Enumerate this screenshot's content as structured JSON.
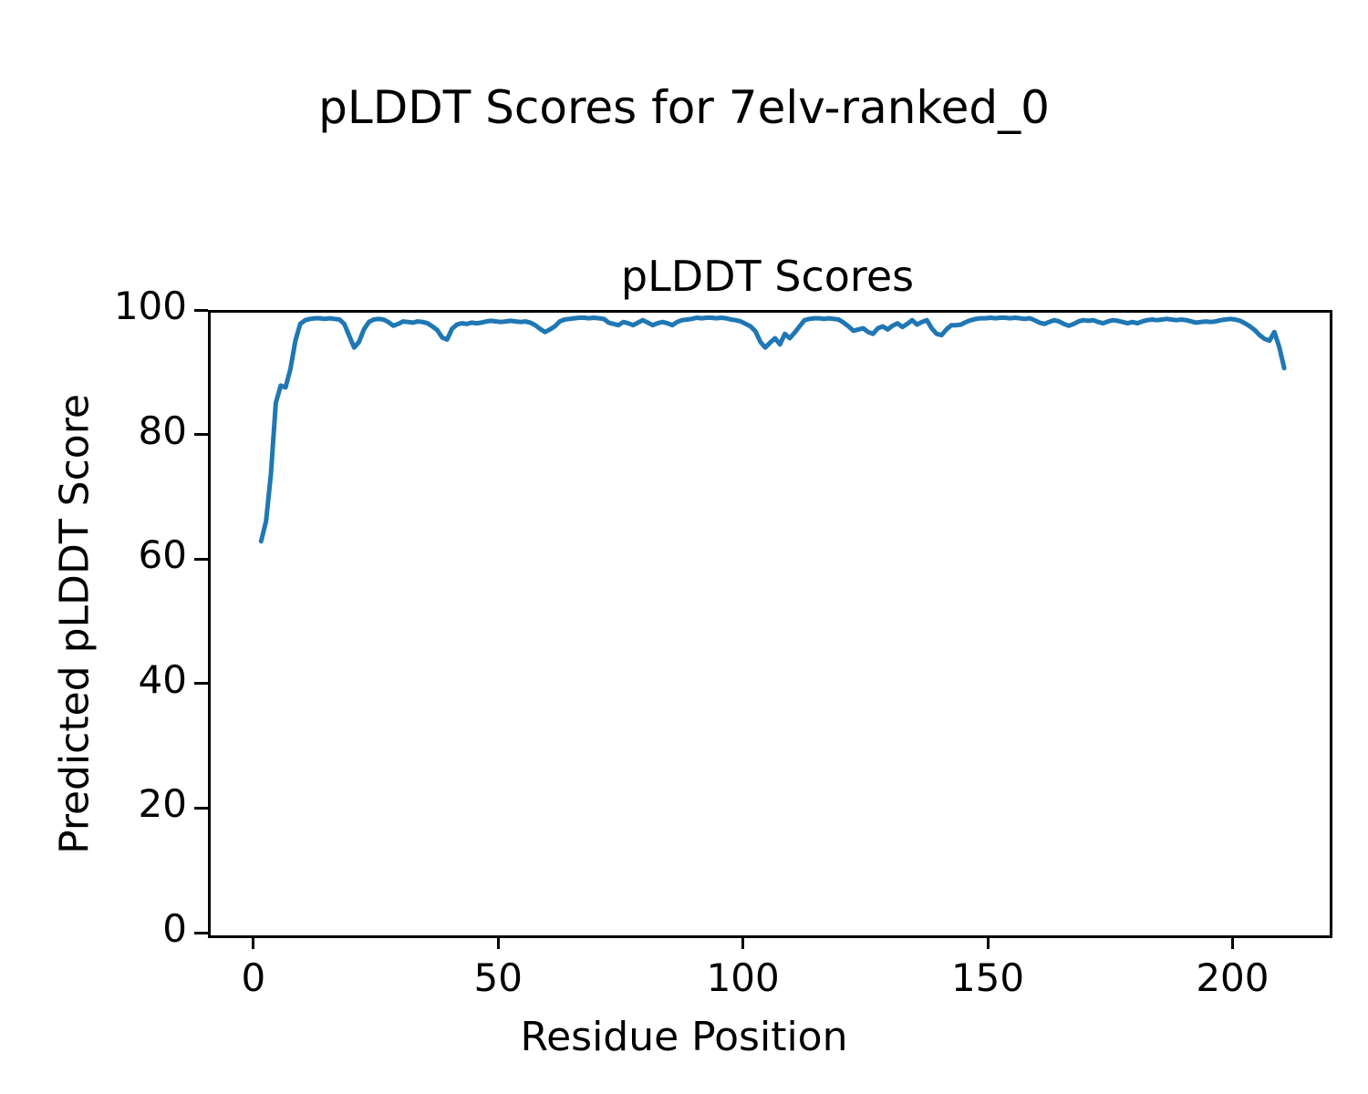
{
  "figure": {
    "title": "pLDDT Scores for 7elv-ranked_0"
  },
  "chart_data": {
    "type": "line",
    "figure_title": "pLDDT Scores for 7elv-ranked_0",
    "title": "pLDDT Scores",
    "xlabel": "Residue Position",
    "ylabel": "Predicted pLDDT Score",
    "x_ticks": [
      0,
      50,
      100,
      150,
      200
    ],
    "y_ticks": [
      0,
      20,
      40,
      60,
      80,
      100
    ],
    "xlim": [
      -9.3,
      219.3
    ],
    "ylim": [
      0,
      100
    ],
    "grid": false,
    "legend": "none",
    "line_color": "#1f77b4",
    "series": [
      {
        "name": "pLDDT",
        "x_start": 1,
        "x_step": 1,
        "values": [
          63.3,
          66.5,
          74.0,
          85.5,
          88.3,
          88.0,
          91.0,
          95.5,
          98.2,
          98.8,
          99.0,
          99.1,
          99.1,
          99.0,
          99.1,
          99.0,
          98.9,
          98.2,
          96.3,
          94.4,
          95.3,
          97.3,
          98.5,
          98.9,
          99.0,
          98.9,
          98.5,
          97.9,
          98.2,
          98.6,
          98.5,
          98.4,
          98.6,
          98.5,
          98.3,
          97.8,
          97.2,
          96.0,
          95.7,
          97.4,
          98.1,
          98.3,
          98.2,
          98.4,
          98.3,
          98.4,
          98.6,
          98.7,
          98.6,
          98.5,
          98.6,
          98.7,
          98.6,
          98.5,
          98.6,
          98.4,
          98.0,
          97.4,
          96.9,
          97.3,
          97.8,
          98.6,
          98.9,
          99.0,
          99.1,
          99.2,
          99.2,
          99.1,
          99.2,
          99.1,
          99.0,
          98.4,
          98.2,
          98.0,
          98.5,
          98.3,
          98.0,
          98.4,
          98.8,
          98.4,
          98.0,
          98.3,
          98.5,
          98.3,
          98.0,
          98.5,
          98.8,
          98.9,
          99.0,
          99.2,
          99.1,
          99.2,
          99.2,
          99.1,
          99.2,
          99.1,
          98.9,
          98.8,
          98.6,
          98.2,
          97.8,
          97.0,
          95.3,
          94.4,
          95.2,
          95.9,
          94.9,
          96.6,
          95.9,
          96.8,
          97.8,
          98.8,
          99.0,
          99.1,
          99.1,
          99.0,
          99.1,
          99.0,
          98.9,
          98.4,
          97.8,
          97.1,
          97.3,
          97.5,
          96.9,
          96.6,
          97.5,
          97.8,
          97.3,
          97.9,
          98.3,
          97.7,
          98.2,
          98.8,
          98.1,
          98.5,
          98.8,
          97.5,
          96.6,
          96.4,
          97.3,
          98.0,
          98.0,
          98.1,
          98.5,
          98.8,
          99.0,
          99.1,
          99.1,
          99.2,
          99.1,
          99.2,
          99.2,
          99.1,
          99.2,
          99.1,
          99.0,
          99.1,
          98.8,
          98.4,
          98.2,
          98.5,
          98.8,
          98.6,
          98.2,
          97.9,
          98.2,
          98.6,
          98.8,
          98.7,
          98.8,
          98.5,
          98.3,
          98.6,
          98.8,
          98.7,
          98.5,
          98.3,
          98.5,
          98.3,
          98.6,
          98.8,
          98.9,
          98.8,
          98.9,
          99.0,
          98.9,
          98.8,
          98.9,
          98.8,
          98.6,
          98.4,
          98.5,
          98.6,
          98.5,
          98.6,
          98.8,
          98.9,
          99.0,
          98.9,
          98.7,
          98.3,
          97.8,
          97.2,
          96.4,
          95.8,
          95.5,
          96.9,
          94.5,
          91.1
        ]
      }
    ]
  }
}
